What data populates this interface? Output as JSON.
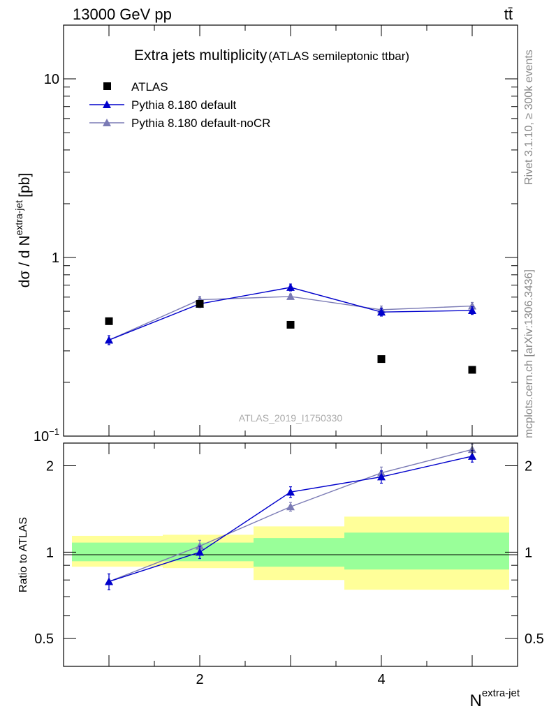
{
  "header": {
    "beam_label": "13000 GeV pp",
    "process_label": "tt̄",
    "side_label_top": "Rivet 3.1.10, ≥ 300k events",
    "side_label_bottom": "mcplots.cern.ch [arXiv:1306.3436]",
    "analysis_id": "ATLAS_2019_I1750330"
  },
  "chart_data": {
    "type": "scatter",
    "title": "Extra jets multiplicity",
    "subtitle": "(ATLAS semileptonic ttbar)",
    "xlabel": "N",
    "xlabel_sup": "extra-jet",
    "ylabel": "dσ / d N",
    "ylabel_sup": "extra-jet",
    "ylabel_unit": "[pb]",
    "ratio_ylabel": "Ratio to ATLAS",
    "xlim": [
      0.5,
      5.5
    ],
    "ylim": [
      0.1,
      20
    ],
    "yscale": "log",
    "ratio_ylim": [
      0.4,
      2.4
    ],
    "ratio_yscale": "log",
    "xticks": [
      2,
      4
    ],
    "yticks_main": [
      {
        "value": 10,
        "label": "10"
      },
      {
        "value": 1,
        "label": "1"
      },
      {
        "value": 0.1,
        "label": "10",
        "sup": "−1"
      }
    ],
    "yticks_ratio": [
      {
        "value": 2,
        "label": "2"
      },
      {
        "value": 1,
        "label": "1"
      },
      {
        "value": 0.5,
        "label": "0.5"
      }
    ],
    "legend_position": "top-left",
    "x": [
      1,
      2,
      3,
      4,
      5
    ],
    "series": [
      {
        "name": "ATLAS",
        "marker": "square",
        "color": "#000000",
        "values": [
          0.44,
          0.55,
          0.42,
          0.27,
          0.235
        ]
      },
      {
        "name": "Pythia 8.180 default",
        "marker": "triangle",
        "color": "#0000cc",
        "values": [
          0.345,
          0.55,
          0.68,
          0.495,
          0.505
        ],
        "errors": [
          0.02,
          0.025,
          0.03,
          0.025,
          0.025
        ]
      },
      {
        "name": "Pythia 8.180 default-noCR",
        "marker": "triangle",
        "color": "#7b7bb5",
        "values": [
          0.345,
          0.58,
          0.605,
          0.51,
          0.535
        ],
        "errors": [
          0.02,
          0.025,
          0.02,
          0.025,
          0.025
        ]
      }
    ],
    "ratio_series": [
      {
        "name": "Pythia 8.180 default",
        "values": [
          0.79,
          1.0,
          1.62,
          1.83,
          2.16
        ],
        "errors": [
          0.05,
          0.05,
          0.07,
          0.09,
          0.1
        ]
      },
      {
        "name": "Pythia 8.180 default-noCR",
        "values": [
          0.79,
          1.05,
          1.44,
          1.89,
          2.28
        ],
        "errors": [
          0.05,
          0.05,
          0.05,
          0.09,
          0.1
        ]
      }
    ],
    "uncertainty_bands": [
      {
        "x_range": [
          0.5,
          1.5
        ],
        "stat": [
          0.93,
          1.08
        ],
        "total": [
          0.89,
          1.14
        ]
      },
      {
        "x_range": [
          1.5,
          2.5
        ],
        "stat": [
          0.93,
          1.08
        ],
        "total": [
          0.88,
          1.15
        ]
      },
      {
        "x_range": [
          2.5,
          3.5
        ],
        "stat": [
          0.89,
          1.12
        ],
        "total": [
          0.8,
          1.23
        ]
      },
      {
        "x_range": [
          3.5,
          5.5
        ],
        "stat": [
          0.87,
          1.17
        ],
        "total": [
          0.74,
          1.33
        ]
      }
    ],
    "band_colors": {
      "stat": "#99ff99",
      "total": "#ffff99"
    }
  }
}
